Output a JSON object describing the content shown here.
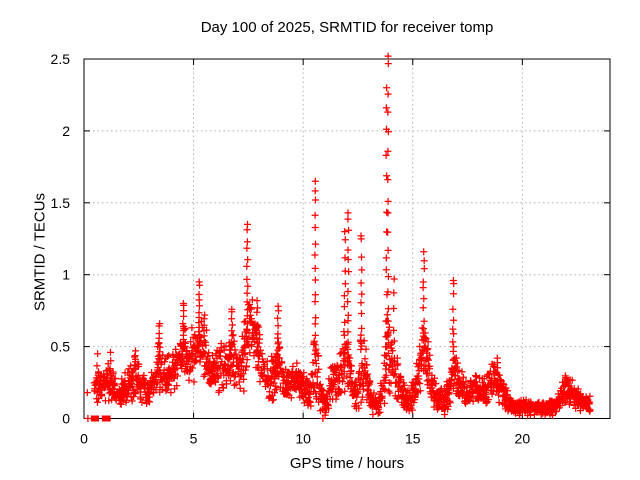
{
  "page": {
    "background": "#ffffff"
  },
  "chart_data": {
    "type": "scatter",
    "title": "Day 100 of 2025, SRMTID for receiver tomp",
    "day_of_year": 100,
    "year": 2025,
    "receiver": "tomp",
    "xlabel": "GPS time / hours",
    "ylabel": "SRMTID / TECUs",
    "xlim": [
      0,
      24
    ],
    "ylim": [
      0,
      2.5
    ],
    "xticks": [
      0,
      5,
      10,
      15,
      20
    ],
    "yticks": [
      0,
      0.5,
      1,
      1.5,
      2,
      2.5
    ],
    "grid": {
      "x": [
        5,
        10,
        15,
        20
      ],
      "y": [
        0.5,
        1,
        1.5,
        2
      ],
      "style": "dotted",
      "color": "#b0b0b0"
    },
    "marker": {
      "glyph": "plus",
      "color": "#ff0000",
      "size": 7
    },
    "axis_color": "#000000",
    "legend": "none",
    "time_range": [
      0.45,
      23.1
    ],
    "sample_step": 0.009,
    "random_seed": 7,
    "baseline_envelope": {
      "format": [
        "t_hours",
        "center_tecu",
        "spread_tecu"
      ],
      "nodes": [
        [
          0.45,
          0.22,
          0.1
        ],
        [
          0.7,
          0.2,
          0.1
        ],
        [
          1.0,
          0.22,
          0.12
        ],
        [
          1.25,
          0.28,
          0.12
        ],
        [
          1.5,
          0.14,
          0.07
        ],
        [
          1.8,
          0.18,
          0.09
        ],
        [
          2.1,
          0.25,
          0.12
        ],
        [
          2.35,
          0.3,
          0.13
        ],
        [
          2.6,
          0.22,
          0.1
        ],
        [
          2.9,
          0.18,
          0.09
        ],
        [
          3.15,
          0.22,
          0.1
        ],
        [
          3.45,
          0.38,
          0.18
        ],
        [
          3.7,
          0.28,
          0.12
        ],
        [
          4.0,
          0.32,
          0.14
        ],
        [
          4.3,
          0.4,
          0.16
        ],
        [
          4.55,
          0.5,
          0.18
        ],
        [
          4.8,
          0.42,
          0.15
        ],
        [
          5.1,
          0.5,
          0.2
        ],
        [
          5.3,
          0.55,
          0.2
        ],
        [
          5.55,
          0.45,
          0.18
        ],
        [
          5.8,
          0.3,
          0.12
        ],
        [
          6.1,
          0.32,
          0.14
        ],
        [
          6.4,
          0.38,
          0.15
        ],
        [
          6.75,
          0.45,
          0.18
        ],
        [
          7.0,
          0.32,
          0.14
        ],
        [
          7.3,
          0.45,
          0.2
        ],
        [
          7.5,
          0.6,
          0.25
        ],
        [
          7.8,
          0.55,
          0.2
        ],
        [
          8.1,
          0.38,
          0.16
        ],
        [
          8.45,
          0.22,
          0.12
        ],
        [
          8.8,
          0.4,
          0.2
        ],
        [
          9.1,
          0.28,
          0.12
        ],
        [
          9.4,
          0.25,
          0.1
        ],
        [
          9.7,
          0.28,
          0.12
        ],
        [
          10.0,
          0.22,
          0.1
        ],
        [
          10.3,
          0.14,
          0.09
        ],
        [
          10.55,
          0.4,
          0.25
        ],
        [
          10.8,
          0.15,
          0.1
        ],
        [
          11.0,
          0.1,
          0.07
        ],
        [
          11.25,
          0.22,
          0.12
        ],
        [
          11.5,
          0.28,
          0.13
        ],
        [
          11.8,
          0.35,
          0.18
        ],
        [
          12.0,
          0.45,
          0.25
        ],
        [
          12.2,
          0.25,
          0.13
        ],
        [
          12.45,
          0.13,
          0.09
        ],
        [
          12.65,
          0.4,
          0.25
        ],
        [
          12.9,
          0.28,
          0.14
        ],
        [
          13.15,
          0.12,
          0.08
        ],
        [
          13.5,
          0.1,
          0.07
        ],
        [
          13.85,
          0.45,
          0.28
        ],
        [
          14.1,
          0.35,
          0.16
        ],
        [
          14.4,
          0.22,
          0.12
        ],
        [
          14.7,
          0.12,
          0.08
        ],
        [
          15.0,
          0.15,
          0.09
        ],
        [
          15.3,
          0.35,
          0.15
        ],
        [
          15.55,
          0.5,
          0.2
        ],
        [
          15.8,
          0.28,
          0.12
        ],
        [
          16.1,
          0.14,
          0.09
        ],
        [
          16.5,
          0.12,
          0.08
        ],
        [
          16.85,
          0.35,
          0.18
        ],
        [
          17.15,
          0.22,
          0.1
        ],
        [
          17.5,
          0.17,
          0.09
        ],
        [
          17.9,
          0.2,
          0.1
        ],
        [
          18.3,
          0.18,
          0.09
        ],
        [
          18.7,
          0.28,
          0.11
        ],
        [
          19.0,
          0.22,
          0.1
        ],
        [
          19.3,
          0.12,
          0.07
        ],
        [
          19.7,
          0.08,
          0.05
        ],
        [
          20.2,
          0.08,
          0.05
        ],
        [
          20.7,
          0.07,
          0.04
        ],
        [
          21.2,
          0.08,
          0.05
        ],
        [
          21.6,
          0.1,
          0.06
        ],
        [
          22.0,
          0.22,
          0.09
        ],
        [
          22.3,
          0.18,
          0.08
        ],
        [
          22.7,
          0.12,
          0.07
        ],
        [
          23.1,
          0.1,
          0.05
        ]
      ]
    },
    "spikes": {
      "format": [
        "t_hours",
        "y_top_tecu",
        "n_points"
      ],
      "values": [
        [
          0.62,
          0.45,
          2
        ],
        [
          1.2,
          0.46,
          2
        ],
        [
          2.35,
          0.47,
          3
        ],
        [
          3.45,
          0.66,
          7
        ],
        [
          4.53,
          0.8,
          8
        ],
        [
          5.25,
          0.95,
          9
        ],
        [
          5.5,
          0.72,
          5
        ],
        [
          6.75,
          0.76,
          7
        ],
        [
          7.45,
          1.35,
          13
        ],
        [
          7.9,
          0.82,
          5
        ],
        [
          8.85,
          0.78,
          8
        ],
        [
          10.55,
          1.65,
          15
        ],
        [
          11.9,
          1.3,
          10
        ],
        [
          12.05,
          1.43,
          12
        ],
        [
          12.65,
          1.27,
          11
        ],
        [
          13.8,
          2.3,
          12
        ],
        [
          13.88,
          2.52,
          16
        ],
        [
          14.15,
          0.97,
          5
        ],
        [
          15.5,
          1.16,
          10
        ],
        [
          16.85,
          0.96,
          9
        ],
        [
          18.85,
          0.42,
          3
        ]
      ]
    },
    "zero_value_squares_t": [
      0.45,
      0.55,
      0.95,
      1.08
    ],
    "zero_value_plus_t": [
      0.18,
      10.9
    ],
    "isolated_points": [
      [
        0.15,
        0.18
      ]
    ]
  }
}
